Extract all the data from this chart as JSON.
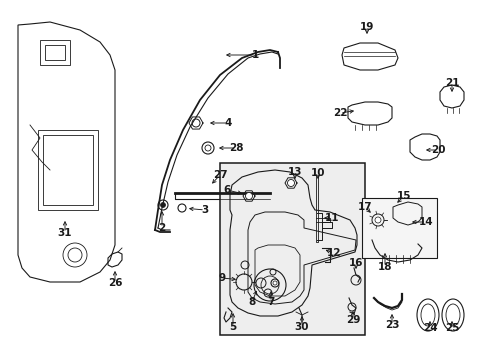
{
  "bg_color": "#ffffff",
  "line_color": "#1a1a1a",
  "fig_width": 4.89,
  "fig_height": 3.6,
  "dpi": 100,
  "xmax": 489,
  "ymax": 360,
  "label_data": [
    [
      "1",
      220,
      55,
      255,
      55
    ],
    [
      "2",
      162,
      205,
      162,
      228
    ],
    [
      "3",
      183,
      208,
      205,
      210
    ],
    [
      "4",
      204,
      123,
      228,
      123
    ],
    [
      "5",
      233,
      307,
      233,
      327
    ],
    [
      "6",
      248,
      195,
      227,
      190
    ],
    [
      "7",
      271,
      285,
      271,
      302
    ],
    [
      "8",
      259,
      285,
      252,
      302
    ],
    [
      "9",
      242,
      280,
      222,
      278
    ],
    [
      "10",
      318,
      185,
      318,
      173
    ],
    [
      "11",
      318,
      218,
      332,
      218
    ],
    [
      "12",
      320,
      248,
      334,
      253
    ],
    [
      "13",
      295,
      185,
      295,
      172
    ],
    [
      "14",
      406,
      222,
      426,
      222
    ],
    [
      "15",
      393,
      207,
      404,
      196
    ],
    [
      "16",
      356,
      275,
      356,
      263
    ],
    [
      "17",
      375,
      217,
      365,
      207
    ],
    [
      "18",
      385,
      247,
      385,
      267
    ],
    [
      "19",
      367,
      40,
      367,
      27
    ],
    [
      "20",
      420,
      150,
      438,
      150
    ],
    [
      "21",
      452,
      98,
      452,
      83
    ],
    [
      "22",
      360,
      110,
      340,
      113
    ],
    [
      "23",
      392,
      308,
      392,
      325
    ],
    [
      "24",
      430,
      315,
      430,
      328
    ],
    [
      "25",
      452,
      315,
      452,
      328
    ],
    [
      "26",
      115,
      265,
      115,
      283
    ],
    [
      "27",
      208,
      188,
      220,
      175
    ],
    [
      "28",
      213,
      148,
      236,
      148
    ],
    [
      "29",
      353,
      305,
      353,
      320
    ],
    [
      "30",
      302,
      310,
      302,
      327
    ],
    [
      "31",
      65,
      215,
      65,
      233
    ]
  ]
}
